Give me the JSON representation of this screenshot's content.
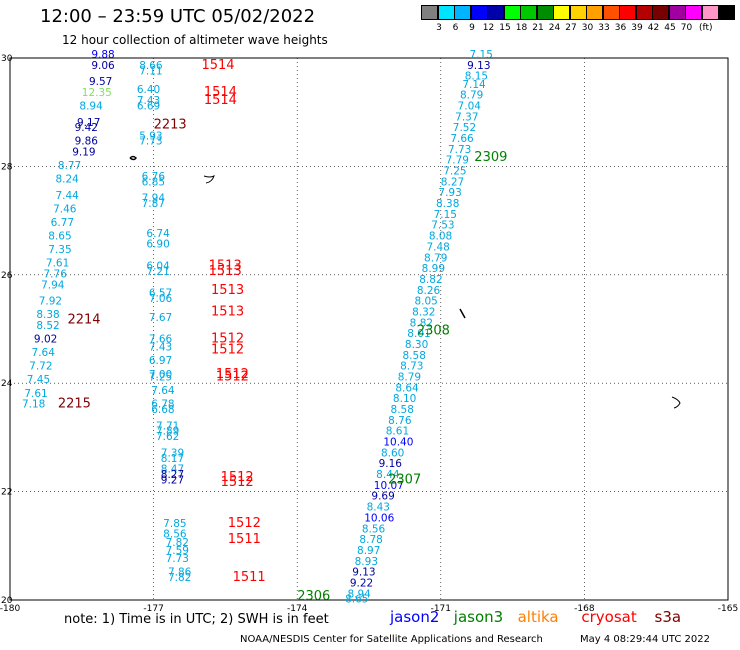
{
  "title": "12:00 – 23:59 UTC 05/02/2022",
  "subtitle": "12 hour collection of altimeter wave heights",
  "legend": {
    "colors": [
      "#808080",
      "#00e5ff",
      "#00b4ff",
      "#0000ff",
      "#0000aa",
      "#00ff00",
      "#00c800",
      "#008c00",
      "#ffff00",
      "#ffd200",
      "#ffa000",
      "#ff5000",
      "#ff0000",
      "#b40000",
      "#780000",
      "#a000a0",
      "#ff00ff",
      "#ff96c8",
      "#000000"
    ],
    "labels": [
      "3",
      "6",
      "9",
      "12",
      "15",
      "18",
      "21",
      "24",
      "27",
      "30",
      "33",
      "36",
      "39",
      "42",
      "45",
      "70"
    ],
    "unit": "(ft)"
  },
  "axis": {
    "x_labels": [
      "-180",
      "-177",
      "-174",
      "-171",
      "-168",
      "-165"
    ],
    "y_labels": [
      "30",
      "28",
      "26",
      "24",
      "22",
      "20"
    ]
  },
  "colors": {
    "jason2": "#0000ff",
    "jason3": "#008000",
    "altika": "#ff8000",
    "cryosat": "#ff0000",
    "s3a": "#800000",
    "cyan": "#00a8e0",
    "navy": "#0000a0",
    "lightgreen": "#80e060"
  },
  "points": [
    {
      "lon": -178.3,
      "lat": 30,
      "v": "9.88",
      "c": "jason2"
    },
    {
      "lon": -178.3,
      "lat": 29.8,
      "v": "9.06",
      "c": "navy"
    },
    {
      "lon": -178.35,
      "lat": 29.5,
      "v": "9.57",
      "c": "navy"
    },
    {
      "lon": -178.5,
      "lat": 29.3,
      "v": "12.35",
      "c": "lightgreen"
    },
    {
      "lon": -178.55,
      "lat": 29.05,
      "v": "8.94",
      "c": "cyan"
    },
    {
      "lon": -178.6,
      "lat": 28.75,
      "v": "9.17",
      "c": "navy"
    },
    {
      "lon": -178.65,
      "lat": 28.65,
      "v": "9.42",
      "c": "navy"
    },
    {
      "lon": -178.65,
      "lat": 28.4,
      "v": "9.86",
      "c": "navy"
    },
    {
      "lon": -178.7,
      "lat": 28.2,
      "v": "9.19",
      "c": "navy"
    },
    {
      "lon": -179.0,
      "lat": 27.95,
      "v": "8.77",
      "c": "cyan"
    },
    {
      "lon": -179.05,
      "lat": 27.7,
      "v": "8.24",
      "c": "cyan"
    },
    {
      "lon": -179.05,
      "lat": 27.4,
      "v": "7.44",
      "c": "cyan"
    },
    {
      "lon": -179.1,
      "lat": 27.15,
      "v": "7.46",
      "c": "cyan"
    },
    {
      "lon": -179.15,
      "lat": 26.9,
      "v": "6.77",
      "c": "cyan"
    },
    {
      "lon": -179.2,
      "lat": 26.65,
      "v": "8.65",
      "c": "cyan"
    },
    {
      "lon": -179.2,
      "lat": 26.4,
      "v": "7.35",
      "c": "cyan"
    },
    {
      "lon": -179.25,
      "lat": 26.15,
      "v": "7.61",
      "c": "cyan"
    },
    {
      "lon": -179.3,
      "lat": 25.95,
      "v": "7.76",
      "c": "cyan"
    },
    {
      "lon": -179.35,
      "lat": 25.75,
      "v": "7.94",
      "c": "cyan"
    },
    {
      "lon": -179.4,
      "lat": 25.45,
      "v": "7.92",
      "c": "cyan"
    },
    {
      "lon": -179.45,
      "lat": 25.2,
      "v": "8.38",
      "c": "cyan"
    },
    {
      "lon": -179.45,
      "lat": 25.0,
      "v": "8.52",
      "c": "cyan"
    },
    {
      "lon": -179.5,
      "lat": 24.75,
      "v": "9.02",
      "c": "navy"
    },
    {
      "lon": -179.55,
      "lat": 24.5,
      "v": "7.64",
      "c": "cyan"
    },
    {
      "lon": -179.6,
      "lat": 24.25,
      "v": "7.72",
      "c": "cyan"
    },
    {
      "lon": -179.65,
      "lat": 24.0,
      "v": "7.45",
      "c": "cyan"
    },
    {
      "lon": -179.7,
      "lat": 23.75,
      "v": "7.61",
      "c": "cyan"
    },
    {
      "lon": -179.75,
      "lat": 23.55,
      "v": "7.18",
      "c": "cyan"
    },
    {
      "lon": -177.3,
      "lat": 29.8,
      "v": "8.66",
      "c": "cyan"
    },
    {
      "lon": -177.3,
      "lat": 29.7,
      "v": "7.11",
      "c": "cyan"
    },
    {
      "lon": -177.35,
      "lat": 29.35,
      "v": "6.40",
      "c": "cyan"
    },
    {
      "lon": -177.35,
      "lat": 29.15,
      "v": "7.43",
      "c": "cyan"
    },
    {
      "lon": -177.35,
      "lat": 29.05,
      "v": "6.69",
      "c": "cyan"
    },
    {
      "lon": -177.3,
      "lat": 28.5,
      "v": "5.93",
      "c": "cyan"
    },
    {
      "lon": -177.3,
      "lat": 28.4,
      "v": "7.73",
      "c": "cyan"
    },
    {
      "lon": -177.25,
      "lat": 27.75,
      "v": "6.76",
      "c": "cyan"
    },
    {
      "lon": -177.25,
      "lat": 27.65,
      "v": "6.85",
      "c": "cyan"
    },
    {
      "lon": -177.25,
      "lat": 27.35,
      "v": "7.94",
      "c": "cyan"
    },
    {
      "lon": -177.25,
      "lat": 27.25,
      "v": "7.87",
      "c": "cyan"
    },
    {
      "lon": -177.15,
      "lat": 26.7,
      "v": "6.74",
      "c": "cyan"
    },
    {
      "lon": -177.15,
      "lat": 26.5,
      "v": "6.90",
      "c": "cyan"
    },
    {
      "lon": -177.15,
      "lat": 26.1,
      "v": "6.04",
      "c": "cyan"
    },
    {
      "lon": -177.15,
      "lat": 26.0,
      "v": "7.21",
      "c": "cyan"
    },
    {
      "lon": -177.1,
      "lat": 25.6,
      "v": "6.57",
      "c": "cyan"
    },
    {
      "lon": -177.1,
      "lat": 25.5,
      "v": "7.06",
      "c": "cyan"
    },
    {
      "lon": -177.1,
      "lat": 25.15,
      "v": "7.67",
      "c": "cyan"
    },
    {
      "lon": -177.1,
      "lat": 24.75,
      "v": "7.66",
      "c": "cyan"
    },
    {
      "lon": -177.1,
      "lat": 24.6,
      "v": "7.43",
      "c": "cyan"
    },
    {
      "lon": -177.1,
      "lat": 24.35,
      "v": "6.97",
      "c": "cyan"
    },
    {
      "lon": -177.1,
      "lat": 24.1,
      "v": "7.00",
      "c": "cyan"
    },
    {
      "lon": -177.1,
      "lat": 24.05,
      "v": "7.25",
      "c": "cyan"
    },
    {
      "lon": -177.05,
      "lat": 23.8,
      "v": "7.64",
      "c": "cyan"
    },
    {
      "lon": -177.05,
      "lat": 23.55,
      "v": "6.78",
      "c": "cyan"
    },
    {
      "lon": -177.05,
      "lat": 23.45,
      "v": "6.68",
      "c": "cyan"
    },
    {
      "lon": -176.95,
      "lat": 23.15,
      "v": "7.71",
      "c": "cyan"
    },
    {
      "lon": -176.95,
      "lat": 23.05,
      "v": "7.89",
      "c": "cyan"
    },
    {
      "lon": -176.95,
      "lat": 22.95,
      "v": "7.62",
      "c": "cyan"
    },
    {
      "lon": -176.85,
      "lat": 22.65,
      "v": "7.39",
      "c": "cyan"
    },
    {
      "lon": -176.85,
      "lat": 22.55,
      "v": "8.17",
      "c": "cyan"
    },
    {
      "lon": -176.85,
      "lat": 22.35,
      "v": "8.47",
      "c": "cyan"
    },
    {
      "lon": -176.85,
      "lat": 22.25,
      "v": "8.27",
      "c": "navy"
    },
    {
      "lon": -176.85,
      "lat": 22.15,
      "v": "9.27",
      "c": "navy"
    },
    {
      "lon": -176.8,
      "lat": 21.35,
      "v": "7.85",
      "c": "cyan"
    },
    {
      "lon": -176.8,
      "lat": 21.15,
      "v": "8.56",
      "c": "cyan"
    },
    {
      "lon": -176.75,
      "lat": 21.0,
      "v": "7.82",
      "c": "cyan"
    },
    {
      "lon": -176.75,
      "lat": 20.85,
      "v": "7.59",
      "c": "cyan"
    },
    {
      "lon": -176.75,
      "lat": 20.7,
      "v": "7.73",
      "c": "cyan"
    },
    {
      "lon": -176.7,
      "lat": 20.45,
      "v": "7.86",
      "c": "cyan"
    },
    {
      "lon": -176.7,
      "lat": 20.35,
      "v": "7.82",
      "c": "cyan"
    },
    {
      "lon": -170.4,
      "lat": 30.0,
      "v": "7.15",
      "c": "cyan"
    },
    {
      "lon": -170.45,
      "lat": 29.8,
      "v": "9.13",
      "c": "navy"
    },
    {
      "lon": -170.5,
      "lat": 29.6,
      "v": "8.15",
      "c": "cyan"
    },
    {
      "lon": -170.55,
      "lat": 29.45,
      "v": "7.14",
      "c": "cyan"
    },
    {
      "lon": -170.6,
      "lat": 29.25,
      "v": "8.79",
      "c": "cyan"
    },
    {
      "lon": -170.65,
      "lat": 29.05,
      "v": "7.04",
      "c": "cyan"
    },
    {
      "lon": -170.7,
      "lat": 28.85,
      "v": "7.37",
      "c": "cyan"
    },
    {
      "lon": -170.75,
      "lat": 28.65,
      "v": "7.52",
      "c": "cyan"
    },
    {
      "lon": -170.8,
      "lat": 28.45,
      "v": "7.66",
      "c": "cyan"
    },
    {
      "lon": -170.85,
      "lat": 28.25,
      "v": "7.73",
      "c": "cyan"
    },
    {
      "lon": -170.9,
      "lat": 28.05,
      "v": "7.79",
      "c": "cyan"
    },
    {
      "lon": -170.95,
      "lat": 27.85,
      "v": "7.25",
      "c": "cyan"
    },
    {
      "lon": -171.0,
      "lat": 27.65,
      "v": "8.27",
      "c": "cyan"
    },
    {
      "lon": -171.05,
      "lat": 27.45,
      "v": "7.93",
      "c": "cyan"
    },
    {
      "lon": -171.1,
      "lat": 27.25,
      "v": "8.38",
      "c": "cyan"
    },
    {
      "lon": -171.15,
      "lat": 27.05,
      "v": "7.15",
      "c": "cyan"
    },
    {
      "lon": -171.2,
      "lat": 26.85,
      "v": "7.53",
      "c": "cyan"
    },
    {
      "lon": -171.25,
      "lat": 26.65,
      "v": "8.08",
      "c": "cyan"
    },
    {
      "lon": -171.3,
      "lat": 26.45,
      "v": "7.48",
      "c": "cyan"
    },
    {
      "lon": -171.35,
      "lat": 26.25,
      "v": "8.79",
      "c": "cyan"
    },
    {
      "lon": -171.4,
      "lat": 26.05,
      "v": "8.99",
      "c": "cyan"
    },
    {
      "lon": -171.45,
      "lat": 25.85,
      "v": "8.82",
      "c": "cyan"
    },
    {
      "lon": -171.5,
      "lat": 25.65,
      "v": "8.26",
      "c": "cyan"
    },
    {
      "lon": -171.55,
      "lat": 25.45,
      "v": "8.05",
      "c": "cyan"
    },
    {
      "lon": -171.6,
      "lat": 25.25,
      "v": "8.32",
      "c": "cyan"
    },
    {
      "lon": -171.65,
      "lat": 25.05,
      "v": "8.82",
      "c": "cyan"
    },
    {
      "lon": -171.7,
      "lat": 24.85,
      "v": "8.01",
      "c": "cyan"
    },
    {
      "lon": -171.75,
      "lat": 24.65,
      "v": "8.30",
      "c": "cyan"
    },
    {
      "lon": -171.8,
      "lat": 24.45,
      "v": "8.58",
      "c": "cyan"
    },
    {
      "lon": -171.85,
      "lat": 24.25,
      "v": "8.73",
      "c": "cyan"
    },
    {
      "lon": -171.9,
      "lat": 24.05,
      "v": "8.79",
      "c": "cyan"
    },
    {
      "lon": -171.95,
      "lat": 23.85,
      "v": "8.64",
      "c": "cyan"
    },
    {
      "lon": -172.0,
      "lat": 23.65,
      "v": "8.10",
      "c": "cyan"
    },
    {
      "lon": -172.05,
      "lat": 23.45,
      "v": "8.58",
      "c": "cyan"
    },
    {
      "lon": -172.1,
      "lat": 23.25,
      "v": "8.76",
      "c": "cyan"
    },
    {
      "lon": -172.15,
      "lat": 23.05,
      "v": "8.61",
      "c": "cyan"
    },
    {
      "lon": -172.2,
      "lat": 22.85,
      "v": "10.40",
      "c": "jason2"
    },
    {
      "lon": -172.25,
      "lat": 22.65,
      "v": "8.60",
      "c": "cyan"
    },
    {
      "lon": -172.3,
      "lat": 22.45,
      "v": "9.16",
      "c": "navy"
    },
    {
      "lon": -172.35,
      "lat": 22.25,
      "v": "8.44",
      "c": "cyan"
    },
    {
      "lon": -172.4,
      "lat": 22.05,
      "v": "10.07",
      "c": "jason2"
    },
    {
      "lon": -172.45,
      "lat": 21.85,
      "v": "9.69",
      "c": "navy"
    },
    {
      "lon": -172.55,
      "lat": 21.65,
      "v": "8.43",
      "c": "cyan"
    },
    {
      "lon": -172.6,
      "lat": 21.45,
      "v": "10.06",
      "c": "jason2"
    },
    {
      "lon": -172.65,
      "lat": 21.25,
      "v": "8.56",
      "c": "cyan"
    },
    {
      "lon": -172.7,
      "lat": 21.05,
      "v": "8.78",
      "c": "cyan"
    },
    {
      "lon": -172.75,
      "lat": 20.85,
      "v": "8.97",
      "c": "cyan"
    },
    {
      "lon": -172.8,
      "lat": 20.65,
      "v": "8.93",
      "c": "cyan"
    },
    {
      "lon": -172.85,
      "lat": 20.45,
      "v": "9.13",
      "c": "navy"
    },
    {
      "lon": -172.9,
      "lat": 20.25,
      "v": "9.22",
      "c": "navy"
    },
    {
      "lon": -172.95,
      "lat": 20.05,
      "v": "8.94",
      "c": "cyan"
    },
    {
      "lon": -173.0,
      "lat": 19.95,
      "v": "8.65",
      "c": "cyan"
    }
  ],
  "passes": [
    {
      "lon": -176.0,
      "lat": 29.8,
      "v": "1514",
      "c": "cryosat"
    },
    {
      "lon": -175.95,
      "lat": 29.3,
      "v": "1514",
      "c": "cryosat"
    },
    {
      "lon": -175.95,
      "lat": 29.15,
      "v": "1514",
      "c": "cryosat"
    },
    {
      "lon": -177.0,
      "lat": 28.7,
      "v": "2213",
      "c": "s3a"
    },
    {
      "lon": -170.3,
      "lat": 28.1,
      "v": "2309",
      "c": "jason3"
    },
    {
      "lon": -175.85,
      "lat": 26.1,
      "v": "1513",
      "c": "cryosat"
    },
    {
      "lon": -175.85,
      "lat": 26.0,
      "v": "1513",
      "c": "cryosat"
    },
    {
      "lon": -175.8,
      "lat": 25.65,
      "v": "1513",
      "c": "cryosat"
    },
    {
      "lon": -175.8,
      "lat": 25.25,
      "v": "1513",
      "c": "cryosat"
    },
    {
      "lon": -178.8,
      "lat": 25.1,
      "v": "2214",
      "c": "s3a"
    },
    {
      "lon": -171.5,
      "lat": 24.9,
      "v": "2308",
      "c": "jason3"
    },
    {
      "lon": -175.8,
      "lat": 24.75,
      "v": "1512",
      "c": "cryosat"
    },
    {
      "lon": -175.8,
      "lat": 24.55,
      "v": "1512",
      "c": "cryosat"
    },
    {
      "lon": -175.7,
      "lat": 24.1,
      "v": "1512",
      "c": "cryosat"
    },
    {
      "lon": -175.7,
      "lat": 24.05,
      "v": "1512",
      "c": "cryosat"
    },
    {
      "lon": -179.0,
      "lat": 23.55,
      "v": "2215",
      "c": "s3a"
    },
    {
      "lon": -172.1,
      "lat": 22.15,
      "v": "2307",
      "c": "jason3"
    },
    {
      "lon": -175.6,
      "lat": 22.2,
      "v": "1512",
      "c": "cryosat"
    },
    {
      "lon": -175.6,
      "lat": 22.1,
      "v": "1512",
      "c": "cryosat"
    },
    {
      "lon": -175.45,
      "lat": 21.35,
      "v": "1512",
      "c": "cryosat"
    },
    {
      "lon": -175.45,
      "lat": 21.05,
      "v": "1511",
      "c": "cryosat"
    },
    {
      "lon": -175.35,
      "lat": 20.35,
      "v": "1511",
      "c": "cryosat"
    },
    {
      "lon": -174.0,
      "lat": 20.0,
      "v": "2306",
      "c": "jason3"
    }
  ],
  "note": "note:  1) Time is in UTC; 2) SWH is in feet",
  "satellites": [
    {
      "name": "jason2",
      "color": "#0000ff"
    },
    {
      "name": "jason3",
      "color": "#008000"
    },
    {
      "name": "altika",
      "color": "#ff8000"
    },
    {
      "name": "cryosat",
      "color": "#ff0000"
    },
    {
      "name": "s3a",
      "color": "#800000"
    }
  ],
  "credit": "NOAA/NESDIS Center for Satellite Applications and Research",
  "stamp": "May  4 08:29:44 UTC 2022"
}
